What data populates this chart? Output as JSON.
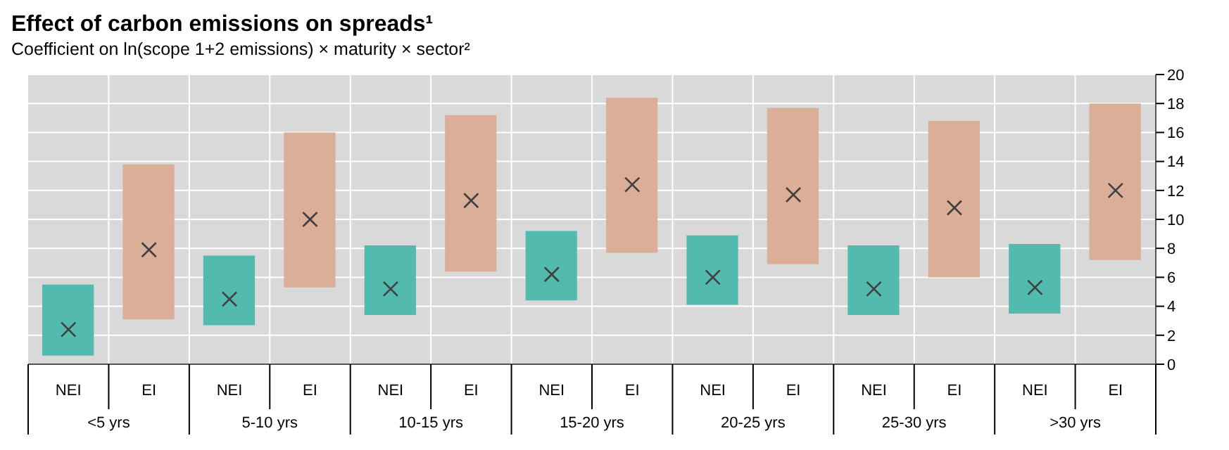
{
  "chart_data": {
    "type": "bar",
    "title": "Effect of carbon emissions on spreads¹",
    "subtitle": "Coefficient on ln(scope 1+2 emissions) × maturity × sector²",
    "categories": [
      "NEI",
      "EI",
      "NEI",
      "EI",
      "NEI",
      "EI",
      "NEI",
      "EI",
      "NEI",
      "EI",
      "NEI",
      "EI",
      "NEI",
      "EI"
    ],
    "annotations": [
      "<5 yrs",
      "5-10 yrs",
      "10-15 yrs",
      "15-20 yrs",
      "20-25 yrs",
      "25-30 yrs",
      ">30 yrs"
    ],
    "series": [
      {
        "values": [
          4.9,
          10.7,
          4.8,
          10.7,
          4.8,
          10.8,
          4.8,
          10.7,
          4.8,
          10.8,
          4.8,
          10.8,
          4.8,
          10.8
        ],
        "base": [
          0.6,
          3.1,
          2.7,
          5.3,
          3.4,
          6.4,
          4.4,
          7.7,
          4.1,
          6.9,
          3.4,
          6.0,
          3.5,
          7.2
        ],
        "colors": [
          "#52bbad",
          "#dbaf97",
          "#52bbad",
          "#dbaf97",
          "#52bbad",
          "#dbaf97",
          "#52bbad",
          "#dbaf97",
          "#52bbad",
          "#dbaf97",
          "#52bbad",
          "#dbaf97",
          "#52bbad",
          "#dbaf97"
        ]
      },
      {
        "type": "scatter",
        "marker": "cross",
        "color": "#404040",
        "values": [
          2.4,
          7.9,
          4.5,
          10.0,
          5.2,
          11.3,
          6.2,
          12.4,
          6.0,
          11.7,
          5.2,
          10.8,
          5.3,
          12.0
        ]
      }
    ],
    "ylim": [
      0,
      20
    ],
    "yticks": [
      0,
      2,
      4,
      6,
      8,
      10,
      12,
      14,
      16,
      18,
      20
    ],
    "grid": true
  }
}
